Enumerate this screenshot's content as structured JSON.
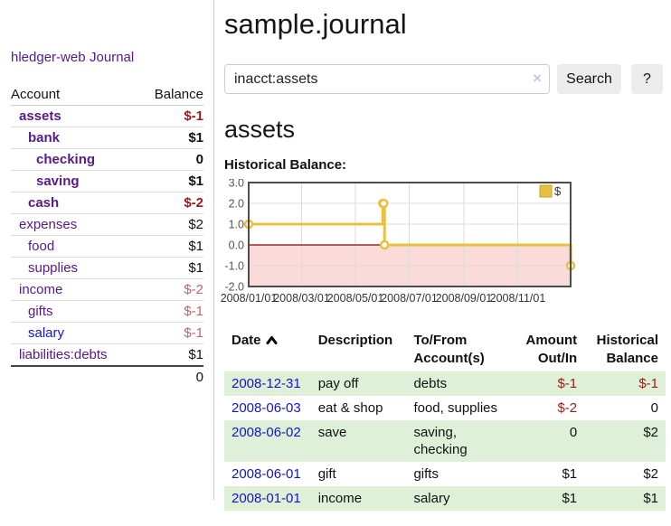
{
  "sidebar": {
    "app_title": "hledger-web",
    "nav_journal": "Journal",
    "accounts_header": {
      "account": "Account",
      "balance": "Balance"
    },
    "accounts": [
      {
        "name": "assets",
        "level": 1,
        "emph": true,
        "link": "purple",
        "balance": "$-1",
        "balance_class": "neg-strong",
        "balance_bold": true
      },
      {
        "name": "bank",
        "level": 2,
        "emph": true,
        "link": "purple",
        "balance": "$1",
        "balance_class": "pos",
        "balance_bold": true
      },
      {
        "name": "checking",
        "level": 3,
        "emph": true,
        "link": "purple",
        "balance": "0",
        "balance_class": "pos",
        "balance_bold": true
      },
      {
        "name": "saving",
        "level": 3,
        "emph": true,
        "link": "purple",
        "balance": "$1",
        "balance_class": "pos",
        "balance_bold": true
      },
      {
        "name": "cash",
        "level": 2,
        "emph": true,
        "link": "purple",
        "balance": "$-2",
        "balance_class": "neg-strong",
        "balance_bold": true
      },
      {
        "name": "expenses",
        "level": 1,
        "emph": false,
        "link": "purple",
        "balance": "$2",
        "balance_class": "pos",
        "balance_bold": false
      },
      {
        "name": "food",
        "level": 2,
        "emph": false,
        "link": "purple",
        "balance": "$1",
        "balance_class": "pos",
        "balance_bold": false
      },
      {
        "name": "supplies",
        "level": 2,
        "emph": false,
        "link": "purple",
        "balance": "$1",
        "balance_class": "pos",
        "balance_bold": false
      },
      {
        "name": "income",
        "level": 1,
        "emph": false,
        "link": "purple",
        "balance": "$-2",
        "balance_class": "neg-dim",
        "balance_bold": false
      },
      {
        "name": "gifts",
        "level": 2,
        "emph": false,
        "link": "purple",
        "balance": "$-1",
        "balance_class": "neg-dim",
        "balance_bold": false
      },
      {
        "name": "salary",
        "level": 2,
        "emph": false,
        "link": "blue",
        "balance": "$-1",
        "balance_class": "neg-dim",
        "balance_bold": false
      },
      {
        "name": "liabilities:debts",
        "level": 1,
        "emph": false,
        "link": "purple",
        "balance": "$1",
        "balance_class": "pos",
        "balance_bold": false
      }
    ],
    "total": "0"
  },
  "header": {
    "title": "sample.journal"
  },
  "search": {
    "value": "inacct:assets",
    "clear_icon": "×",
    "button_label": "Search",
    "help_label": "?"
  },
  "account_page": {
    "title": "assets",
    "chart_label": "Historical Balance:"
  },
  "chart_data": {
    "type": "line",
    "step": true,
    "title": "Historical Balance",
    "series": [
      {
        "name": "$",
        "points": [
          {
            "date": "2008-01-01",
            "x": 0,
            "y": 1
          },
          {
            "date": "2008-06-01",
            "x": 152,
            "y": 2
          },
          {
            "date": "2008-06-02",
            "x": 153,
            "y": 2
          },
          {
            "date": "2008-06-03",
            "x": 154,
            "y": 0
          },
          {
            "date": "2008-12-31",
            "x": 365,
            "y": -1
          }
        ]
      }
    ],
    "xlim": [
      0,
      365
    ],
    "ylim": [
      -2,
      3
    ],
    "y_ticks": [
      3.0,
      2.0,
      1.0,
      0.0,
      -1.0,
      -2.0
    ],
    "x_ticks": [
      {
        "x": 0,
        "label": "2008/01/01"
      },
      {
        "x": 60,
        "label": "2008/03/01"
      },
      {
        "x": 121,
        "label": "2008/05/01"
      },
      {
        "x": 182,
        "label": "2008/07/01"
      },
      {
        "x": 244,
        "label": "2008/09/01"
      },
      {
        "x": 305,
        "label": "2008/11/01"
      }
    ],
    "legend": {
      "label": "$",
      "position": "top-right"
    },
    "grid": true
  },
  "transactions": {
    "headers": [
      {
        "label": "Date",
        "align": "left",
        "sorted": true
      },
      {
        "label": "Description",
        "align": "left"
      },
      {
        "label": "To/From Account(s)",
        "align": "left"
      },
      {
        "label": "Amount Out/In",
        "align": "right"
      },
      {
        "label": "Historical Balance",
        "align": "right"
      }
    ],
    "rows": [
      {
        "date": "2008-12-31",
        "description": "pay off",
        "accounts": "debts",
        "amount": "$-1",
        "balance": "$-1"
      },
      {
        "date": "2008-06-03",
        "description": "eat & shop",
        "accounts": "food, supplies",
        "amount": "$-2",
        "balance": "0"
      },
      {
        "date": "2008-06-02",
        "description": "save",
        "accounts": "saving, checking",
        "amount": "0",
        "balance": "$2"
      },
      {
        "date": "2008-06-01",
        "description": "gift",
        "accounts": "gifts",
        "amount": "$1",
        "balance": "$2"
      },
      {
        "date": "2008-01-01",
        "description": "income",
        "accounts": "salary",
        "amount": "$1",
        "balance": "$1"
      }
    ]
  },
  "colors": {
    "link_purple": "#551a8b",
    "link_blue": "#1414cc",
    "negative_strong": "#9e1a1a",
    "negative_dim": "#b96a6a",
    "row_stripe_green": "#dff0d8",
    "chart_line_gold": "#e8c13f",
    "chart_legend_border": "#c9a227",
    "chart_negative_region": "#fbdada",
    "chart_zero_line": "#8b0000",
    "chart_grid": "#dbdbdb",
    "chart_border": "#4d4d4d",
    "button_bg": "#ececec"
  }
}
